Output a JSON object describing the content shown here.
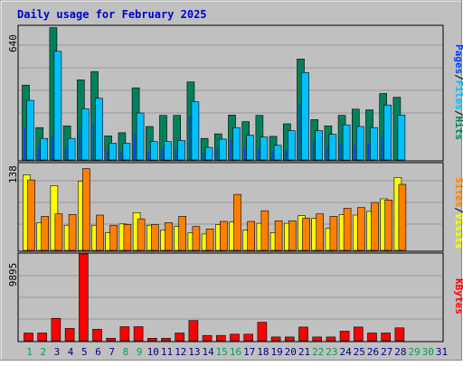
{
  "title": "Daily usage for February 2025",
  "colors": {
    "frame_bg": "#c0c0c0",
    "plot_bg": "#c0c0c0",
    "grid": "#999999",
    "title": "#0000cc",
    "hits": "#00805c",
    "files": "#00c0ff",
    "pages": "#0040ff",
    "visits": "#ffff00",
    "sites": "#ff8000",
    "kbytes": "#ff0000",
    "day_normal": "#00008b",
    "day_weekend": "#00a050",
    "separator": "#000000"
  },
  "chart_data": [
    {
      "type": "bar",
      "panel": "hits-files-pages",
      "ymax_label": "640",
      "ylim": [
        0,
        640
      ],
      "grid": true,
      "legend": [
        {
          "name": "Pages",
          "color_key": "pages"
        },
        {
          "name": "Files",
          "color_key": "files"
        },
        {
          "name": "Hits",
          "color_key": "hits"
        }
      ],
      "categories": [
        1,
        2,
        3,
        4,
        5,
        6,
        7,
        8,
        9,
        10,
        11,
        12,
        13,
        14,
        15,
        16,
        17,
        18,
        19,
        20,
        21,
        22,
        23,
        24,
        25,
        26,
        27,
        28
      ],
      "series": [
        {
          "name": "Hits",
          "values": [
            358,
            155,
            633,
            163,
            383,
            423,
            115,
            130,
            345,
            160,
            213,
            213,
            373,
            103,
            125,
            215,
            183,
            213,
            113,
            173,
            483,
            193,
            163,
            213,
            243,
            240,
            318,
            300
          ]
        },
        {
          "name": "Files",
          "values": [
            285,
            103,
            520,
            103,
            245,
            295,
            80,
            80,
            225,
            88,
            88,
            93,
            278,
            60,
            100,
            155,
            118,
            110,
            70,
            140,
            418,
            140,
            123,
            168,
            160,
            155,
            263,
            215
          ]
        },
        {
          "name": "Pages",
          "values": [
            155,
            60,
            110,
            60,
            145,
            175,
            45,
            40,
            125,
            40,
            55,
            50,
            215,
            35,
            55,
            100,
            60,
            55,
            40,
            50,
            270,
            90,
            65,
            75,
            70,
            80,
            110,
            0
          ]
        }
      ]
    },
    {
      "type": "bar",
      "panel": "visits-sites",
      "ymax_label": "138",
      "ylim": [
        0,
        138
      ],
      "grid": true,
      "legend": [
        {
          "name": "Sites",
          "color_key": "sites"
        },
        {
          "name": "Visits",
          "color_key": "visits"
        }
      ],
      "categories": [
        1,
        2,
        3,
        4,
        5,
        6,
        7,
        8,
        9,
        10,
        11,
        12,
        13,
        14,
        15,
        16,
        17,
        18,
        19,
        20,
        21,
        22,
        23,
        24,
        25,
        26,
        27,
        28
      ],
      "series": [
        {
          "name": "Visits",
          "values": [
            120,
            44,
            103,
            40,
            110,
            40,
            28,
            42,
            60,
            40,
            32,
            38,
            28,
            26,
            41,
            45,
            32,
            43,
            28,
            43,
            55,
            51,
            35,
            57,
            56,
            62,
            82,
            116
          ]
        },
        {
          "name": "Sites",
          "values": [
            112,
            54,
            58,
            57,
            130,
            56,
            40,
            41,
            50,
            41,
            44,
            54,
            38,
            34,
            46,
            89,
            46,
            63,
            47,
            47,
            51,
            58,
            54,
            67,
            68,
            76,
            80,
            105
          ]
        }
      ]
    },
    {
      "type": "bar",
      "panel": "kbytes",
      "ymax_label": "9895",
      "ylim": [
        0,
        9895
      ],
      "grid": true,
      "legend": [
        {
          "name": "KBytes",
          "color_key": "kbytes"
        }
      ],
      "categories": [
        1,
        2,
        3,
        4,
        5,
        6,
        7,
        8,
        9,
        10,
        11,
        12,
        13,
        14,
        15,
        16,
        17,
        18,
        19,
        20,
        21,
        22,
        23,
        24,
        25,
        26,
        27,
        28
      ],
      "series": [
        {
          "name": "KBytes",
          "values": [
            880,
            880,
            2560,
            1400,
            9895,
            1300,
            280,
            1600,
            1600,
            280,
            280,
            880,
            2300,
            600,
            600,
            740,
            740,
            2100,
            420,
            420,
            1560,
            420,
            420,
            1080,
            1560,
            880,
            880,
            1460
          ]
        }
      ]
    }
  ],
  "x_axis": {
    "days": [
      "1",
      "2",
      "3",
      "4",
      "5",
      "6",
      "7",
      "8",
      "9",
      "10",
      "11",
      "12",
      "13",
      "14",
      "15",
      "16",
      "17",
      "18",
      "19",
      "20",
      "21",
      "22",
      "23",
      "24",
      "25",
      "26",
      "27",
      "28",
      "29",
      "30",
      "31"
    ],
    "weekend": [
      1,
      2,
      8,
      9,
      15,
      16,
      22,
      23,
      29,
      30
    ]
  }
}
